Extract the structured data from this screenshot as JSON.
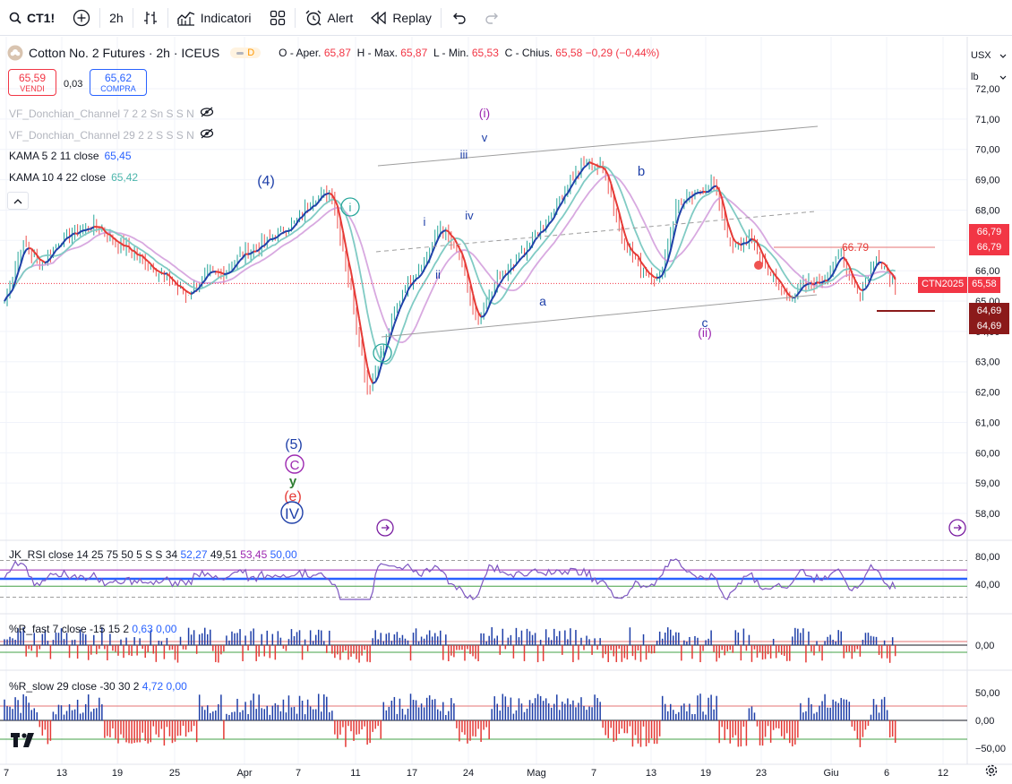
{
  "toolbar": {
    "symbol": "CT1!",
    "interval": "2h",
    "indicators_label": "Indicatori",
    "alert_label": "Alert",
    "replay_label": "Replay"
  },
  "legend": {
    "title": "Cotton No. 2 Futures · 2h · ICEUS",
    "badge": "D",
    "open_label": "O - Aper.",
    "open": "65,87",
    "high_label": "H - Max.",
    "high": "65,87",
    "low_label": "L - Min.",
    "low": "65,53",
    "close_label": "C - Chius.",
    "close": "65,58",
    "change": "−0,29 (−0,44%)"
  },
  "trade": {
    "sell_price": "65,59",
    "sell_label": "VENDI",
    "spread": "0,03",
    "buy_price": "65,62",
    "buy_label": "COMPRA"
  },
  "indicators": {
    "donchian1": "VF_Donchian_Channel 7 2 2 Sn S S N",
    "donchian2": "VF_Donchian_Channel 29 2 2 S S S N",
    "kama1_name": "KAMA 5 2 11 close",
    "kama1_value": "65,45",
    "kama2_name": "KAMA 10 4 22 close",
    "kama2_value": "65,42"
  },
  "price_axis": {
    "currency": "USX",
    "unit": "lb",
    "ticks": [
      "72,00",
      "71,00",
      "70,00",
      "69,00",
      "68,00",
      "67,00",
      "66,00",
      "65,00",
      "64,00",
      "63,00",
      "62,00",
      "61,00",
      "60,00",
      "59,00",
      "58,00"
    ],
    "tag_high1": "66,79",
    "tag_high2": "66,79",
    "tag_symbol": "CTN2025",
    "tag_price": "65,58",
    "tag_low1": "64,69",
    "tag_low2": "64,69"
  },
  "annotations": {
    "level_label": "66.79",
    "wave_4": "(4)",
    "wave_5": "(5)",
    "wave_C": "C",
    "wave_y": "y",
    "wave_e": "(e)",
    "wave_IV": "IV",
    "wave_i_circ": "i",
    "wave_ii_circ": "ii",
    "wave_i_small": "i",
    "wave_ii_small": "ii",
    "wave_iii": "iii",
    "wave_iv": "iv",
    "wave_v": "v",
    "wave_i_paren": "(i)",
    "wave_a": "a",
    "wave_b": "b",
    "wave_c": "c",
    "wave_ii_paren": "(ii)"
  },
  "rsi": {
    "legend": "JK_RSI close 14 25 75 50 5 S S 34",
    "v1": "52,27",
    "v2": "49,51",
    "v3": "53,45",
    "v4": "50,00",
    "ticks": [
      "80,00",
      "40,00"
    ]
  },
  "wr_fast": {
    "legend": "%R_fast 7 close -15 15 2",
    "v1": "0,63",
    "v2": "0,00",
    "ticks": [
      "0,00"
    ]
  },
  "wr_slow": {
    "legend": "%R_slow 29 close -30 30 2",
    "v1": "4,72",
    "v2": "0,00",
    "ticks": [
      "50,00",
      "0,00",
      "−50,00"
    ]
  },
  "time_axis": [
    "7",
    "13",
    "19",
    "25",
    "Apr",
    "7",
    "11",
    "17",
    "24",
    "Mag",
    "7",
    "13",
    "19",
    "23",
    "Giu",
    "6",
    "12"
  ],
  "chart_data": {
    "type": "line",
    "title": "Cotton No. 2 Futures · 2h · ICEUS",
    "ylim": [
      57.5,
      72.0
    ],
    "x": [
      0,
      2,
      4,
      6,
      8,
      10,
      12,
      14,
      16,
      18,
      20,
      22,
      24,
      26,
      28,
      30,
      32,
      34,
      36,
      38,
      40,
      42,
      44,
      46,
      48,
      50,
      52,
      54,
      56,
      58,
      60,
      62,
      64,
      66,
      68,
      70,
      72,
      74,
      76,
      78,
      80,
      82,
      84,
      86,
      88,
      90,
      92,
      94,
      96,
      98
    ],
    "series": [
      {
        "name": "",
        "values": [
          65.0,
          66.9,
          66.2,
          67.0,
          67.3,
          67.5,
          67.0,
          66.6,
          66.2,
          65.7,
          65.2,
          65.8,
          65.9,
          66.5,
          66.8,
          67.2,
          67.6,
          68.4,
          68.6,
          65.5,
          62.0,
          63.8,
          65.5,
          66.2,
          67.5,
          66.5,
          64.1,
          65.6,
          66.2,
          67.0,
          67.8,
          68.9,
          69.6,
          69.3,
          67.0,
          66.1,
          65.7,
          68.2,
          68.5,
          68.9,
          66.7,
          67.1,
          66.0,
          65.1,
          65.5,
          65.7,
          66.5,
          65.2,
          66.5,
          65.58
        ]
      }
    ]
  }
}
